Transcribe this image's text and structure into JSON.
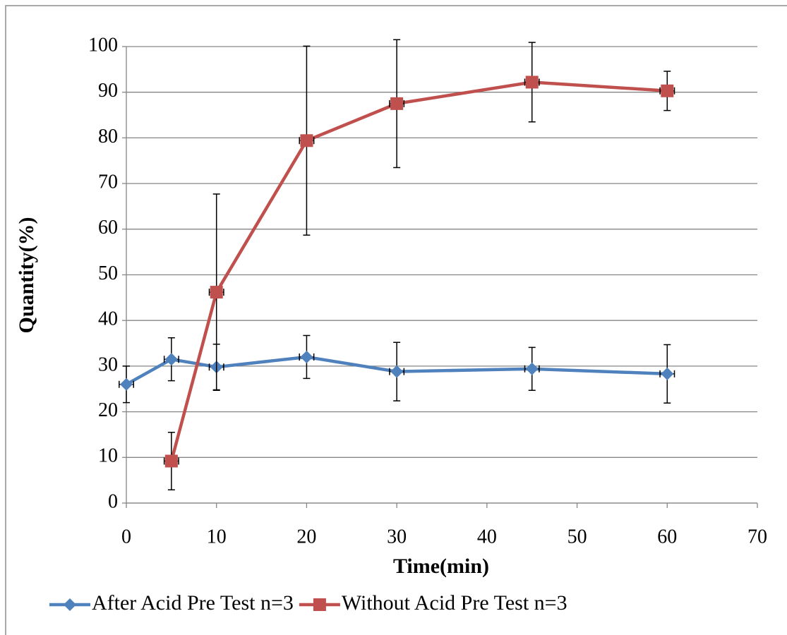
{
  "chart_data": {
    "type": "line",
    "x_label": "Time(min)",
    "y_label": "Quantity(%)",
    "xlim": [
      0,
      70
    ],
    "xticks": [
      0,
      10,
      20,
      30,
      40,
      50,
      60,
      70
    ],
    "ylim": [
      0,
      100
    ],
    "yticks": [
      0,
      10,
      20,
      30,
      40,
      50,
      60,
      70,
      80,
      90,
      100
    ],
    "grid": true,
    "legend": "bottom",
    "series": [
      {
        "name": "After Acid Pre Test n=3",
        "color": "#4f81bd",
        "marker": "diamond",
        "x": [
          0,
          5,
          10,
          20,
          30,
          45,
          60
        ],
        "values": [
          26,
          31.5,
          29.8,
          32,
          28.8,
          29.4,
          28.3
        ],
        "errors": [
          4,
          4.7,
          5,
          4.7,
          6.4,
          4.7,
          6.4
        ],
        "xerr": 0.8
      },
      {
        "name": "Without Acid Pre Test n=3",
        "color": "#c0504d",
        "marker": "square",
        "x": [
          5,
          10,
          20,
          30,
          45,
          60
        ],
        "values": [
          9.2,
          46.2,
          79.4,
          87.5,
          92.2,
          90.3
        ],
        "errors": [
          6.3,
          21.5,
          20.7,
          14,
          8.7,
          4.3
        ],
        "xerr": 0.8
      }
    ]
  }
}
